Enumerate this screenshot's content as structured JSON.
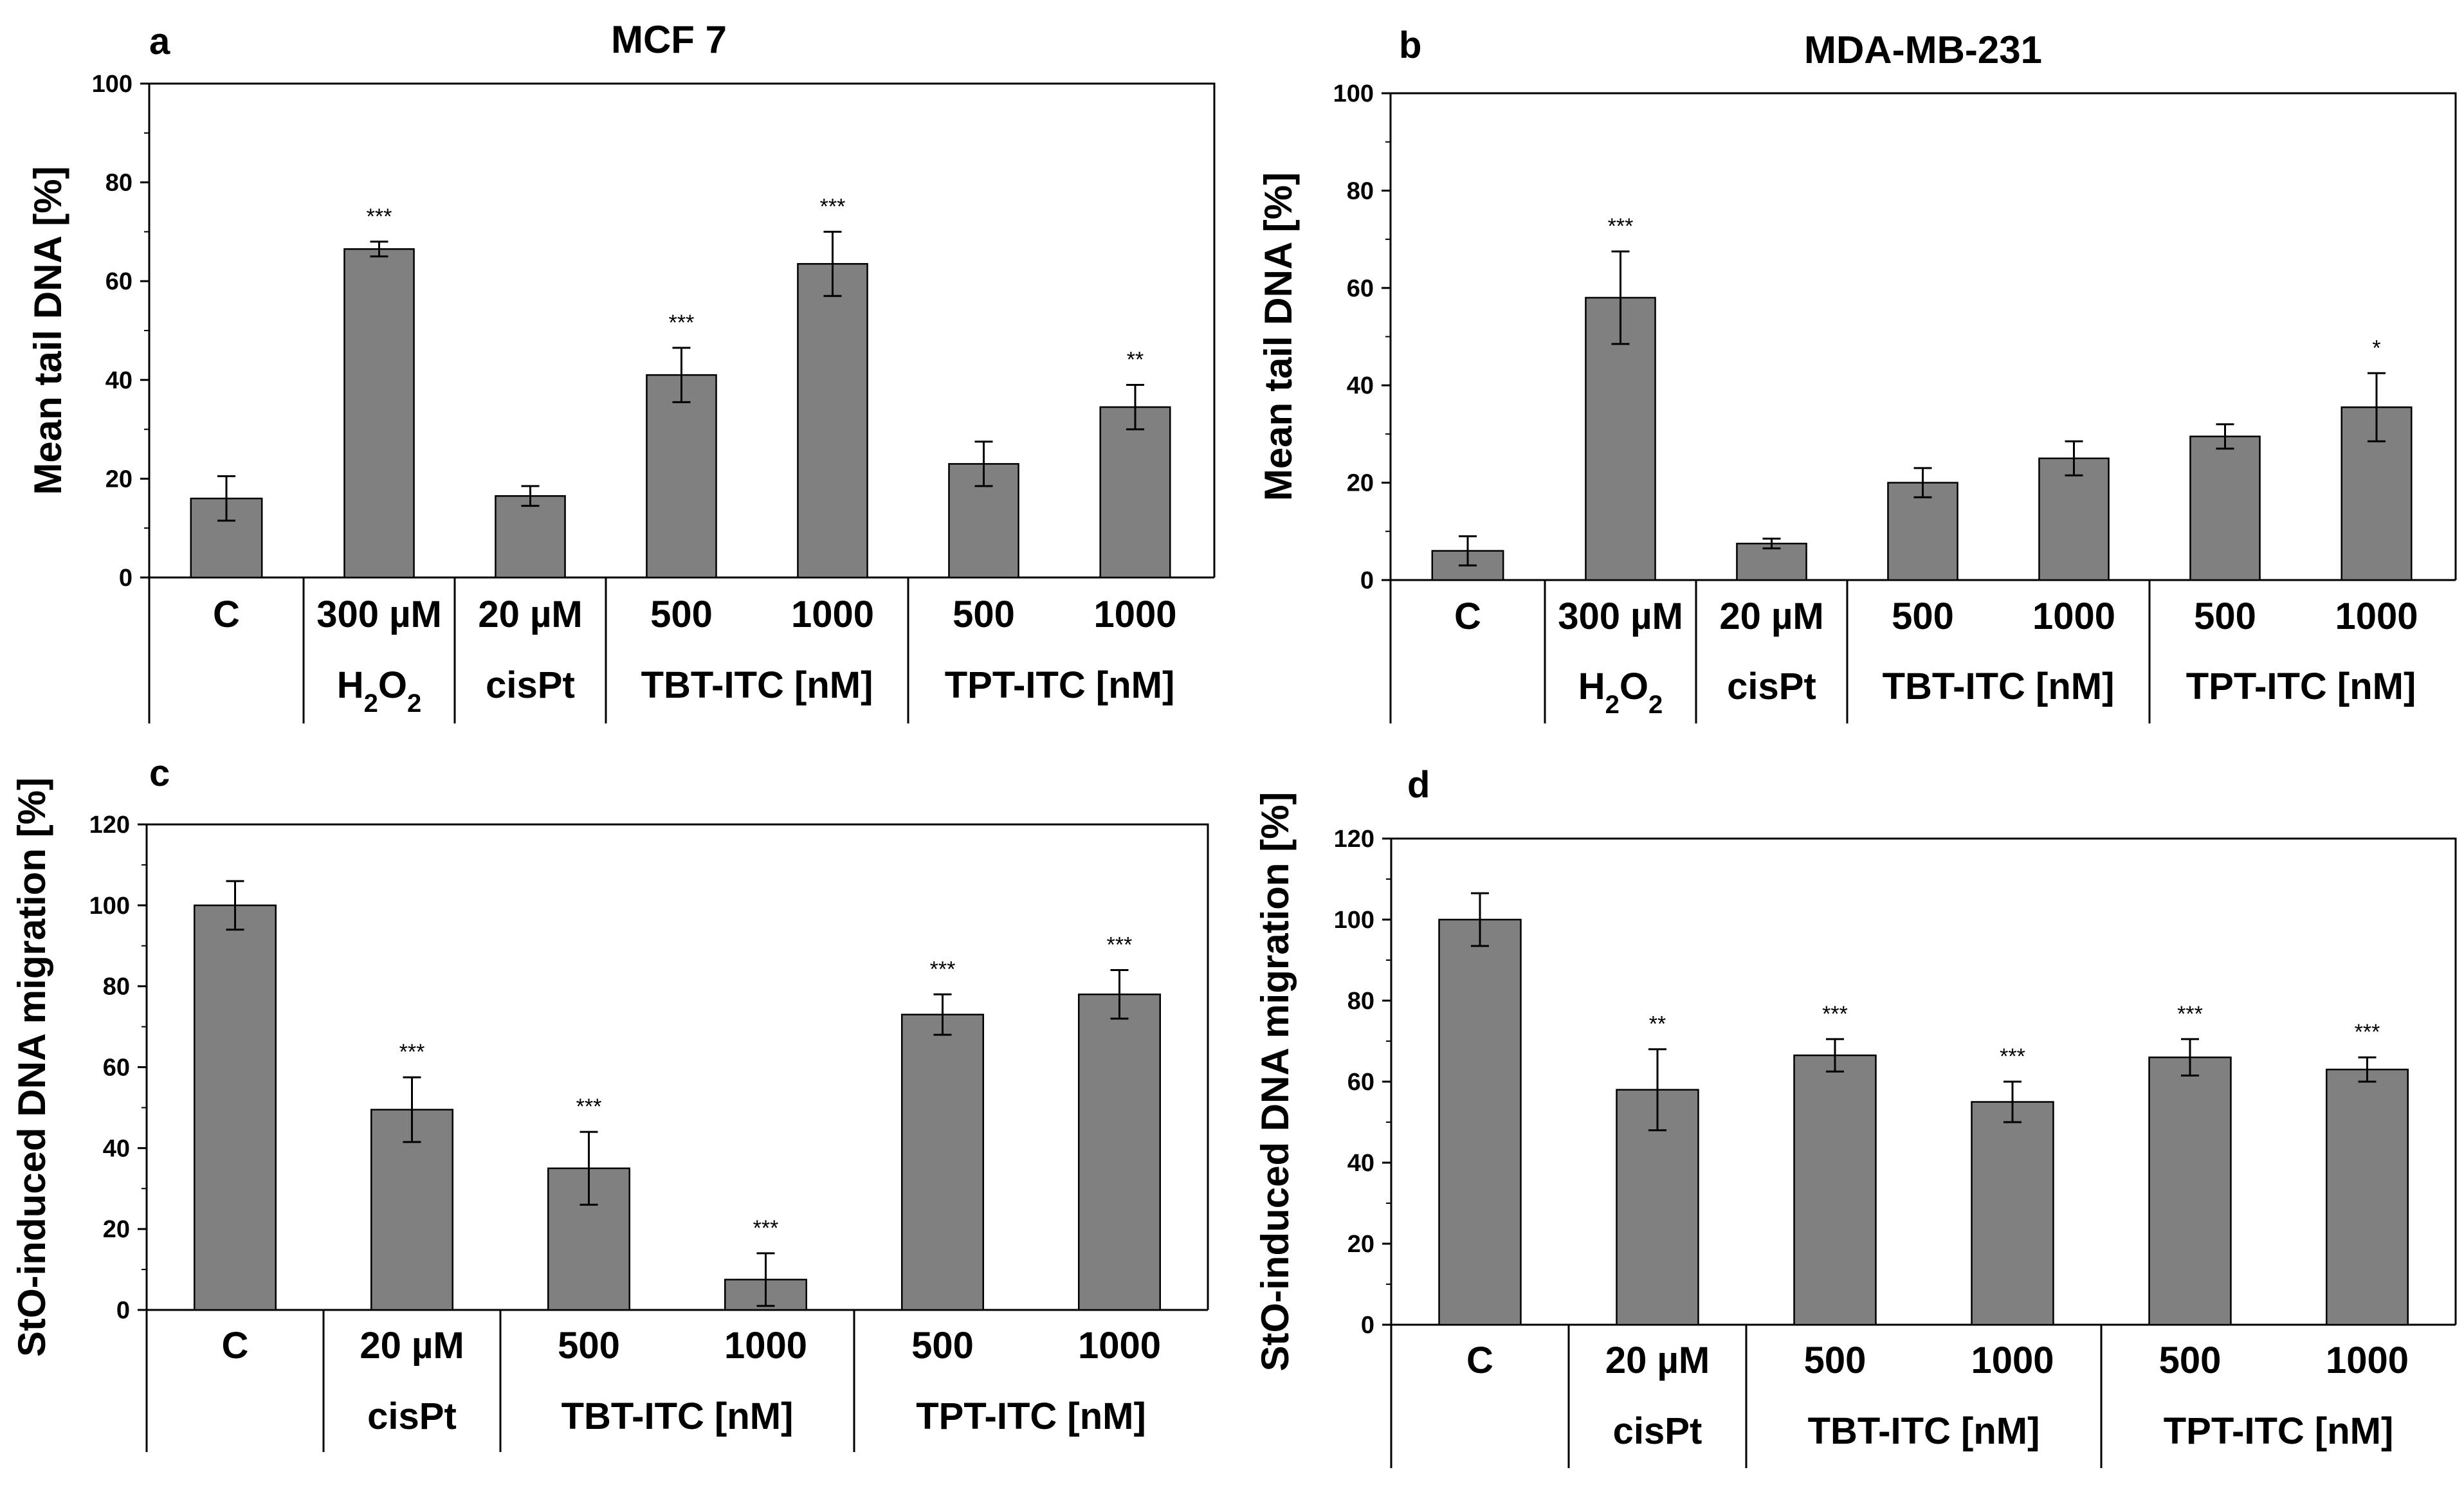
{
  "figure": {
    "panels": [
      {
        "letter": "a",
        "title": "MCF 7"
      },
      {
        "letter": "b",
        "title": "MDA-MB-231"
      },
      {
        "letter": "c",
        "title": ""
      },
      {
        "letter": "d",
        "title": ""
      }
    ]
  },
  "chart_data": [
    {
      "type": "bar",
      "panel": "a",
      "title": "MCF 7",
      "ylabel": "Mean tail DNA [%]",
      "xlabel": "",
      "ylim": [
        0,
        100
      ],
      "yticks": [
        0,
        20,
        40,
        60,
        80,
        100
      ],
      "categories": [
        "C",
        "300 µM",
        "20 µM",
        "500",
        "1000",
        "500",
        "1000"
      ],
      "values": [
        16,
        66.5,
        16.5,
        41,
        63.5,
        23,
        34.5
      ],
      "errors": [
        4.5,
        1.5,
        2,
        5.5,
        6.5,
        4.5,
        4.5
      ],
      "significance": [
        "",
        "***",
        "",
        "***",
        "***",
        "",
        "**"
      ],
      "groups": [
        {
          "label_parts": [],
          "span": [
            0,
            0
          ]
        },
        {
          "label_parts": [
            {
              "t": "H"
            },
            {
              "t": "2",
              "sub": true
            },
            {
              "t": "O"
            },
            {
              "t": "2",
              "sub": true
            }
          ],
          "span": [
            1,
            1
          ]
        },
        {
          "label_parts": [
            {
              "t": "cisPt"
            }
          ],
          "span": [
            2,
            2
          ]
        },
        {
          "label_parts": [
            {
              "t": "TBT-ITC [nM]"
            }
          ],
          "span": [
            3,
            4
          ]
        },
        {
          "label_parts": [
            {
              "t": "TPT-ITC [nM]"
            }
          ],
          "span": [
            5,
            6
          ]
        }
      ],
      "bar_color": "#808080"
    },
    {
      "type": "bar",
      "panel": "b",
      "title": "MDA-MB-231",
      "ylabel": "Mean tail DNA [%]",
      "xlabel": "",
      "ylim": [
        0,
        100
      ],
      "yticks": [
        0,
        20,
        40,
        60,
        80,
        100
      ],
      "categories": [
        "C",
        "300 µM",
        "20 µM",
        "500",
        "1000",
        "500",
        "1000"
      ],
      "values": [
        6,
        58,
        7.5,
        20,
        25,
        29.5,
        35.5
      ],
      "errors": [
        3,
        9.5,
        1,
        3,
        3.5,
        2.5,
        7
      ],
      "significance": [
        "",
        "***",
        "",
        "",
        "",
        "",
        "*"
      ],
      "groups": [
        {
          "label_parts": [],
          "span": [
            0,
            0
          ]
        },
        {
          "label_parts": [
            {
              "t": "H"
            },
            {
              "t": "2",
              "sub": true
            },
            {
              "t": "O"
            },
            {
              "t": "2",
              "sub": true
            }
          ],
          "span": [
            1,
            1
          ]
        },
        {
          "label_parts": [
            {
              "t": "cisPt"
            }
          ],
          "span": [
            2,
            2
          ]
        },
        {
          "label_parts": [
            {
              "t": "TBT-ITC [nM]"
            }
          ],
          "span": [
            3,
            4
          ]
        },
        {
          "label_parts": [
            {
              "t": "TPT-ITC [nM]"
            }
          ],
          "span": [
            5,
            6
          ]
        }
      ],
      "bar_color": "#808080"
    },
    {
      "type": "bar",
      "panel": "c",
      "title": "",
      "ylabel": "StO-induced DNA migration [%]",
      "xlabel": "",
      "ylim": [
        0,
        120
      ],
      "yticks": [
        0,
        20,
        40,
        60,
        80,
        100,
        120
      ],
      "categories": [
        "C",
        "20 µM",
        "500",
        "1000",
        "500",
        "1000"
      ],
      "values": [
        100,
        49.5,
        35,
        7.5,
        73,
        78
      ],
      "errors": [
        6,
        8,
        9,
        6.5,
        5,
        6
      ],
      "significance": [
        "",
        "***",
        "***",
        "***",
        "***",
        "***"
      ],
      "groups": [
        {
          "label_parts": [],
          "span": [
            0,
            0
          ]
        },
        {
          "label_parts": [
            {
              "t": "cisPt"
            }
          ],
          "span": [
            1,
            1
          ]
        },
        {
          "label_parts": [
            {
              "t": "TBT-ITC [nM]"
            }
          ],
          "span": [
            2,
            3
          ]
        },
        {
          "label_parts": [
            {
              "t": "TPT-ITC [nM]"
            }
          ],
          "span": [
            4,
            5
          ]
        }
      ],
      "bar_color": "#808080"
    },
    {
      "type": "bar",
      "panel": "d",
      "title": "",
      "ylabel": "StO-induced DNA migration [%]",
      "xlabel": "",
      "ylim": [
        0,
        120
      ],
      "yticks": [
        0,
        20,
        40,
        60,
        80,
        100,
        120
      ],
      "categories": [
        "C",
        "20 µM",
        "500",
        "1000",
        "500",
        "1000"
      ],
      "values": [
        100,
        58,
        66.5,
        55,
        66,
        63
      ],
      "errors": [
        6.5,
        10,
        4,
        5,
        4.5,
        3
      ],
      "significance": [
        "",
        "**",
        "***",
        "***",
        "***",
        "***"
      ],
      "groups": [
        {
          "label_parts": [],
          "span": [
            0,
            0
          ]
        },
        {
          "label_parts": [
            {
              "t": "cisPt"
            }
          ],
          "span": [
            1,
            1
          ]
        },
        {
          "label_parts": [
            {
              "t": "TBT-ITC [nM]"
            }
          ],
          "span": [
            2,
            3
          ]
        },
        {
          "label_parts": [
            {
              "t": "TPT-ITC [nM]"
            }
          ],
          "span": [
            4,
            5
          ]
        }
      ],
      "bar_color": "#808080"
    }
  ]
}
